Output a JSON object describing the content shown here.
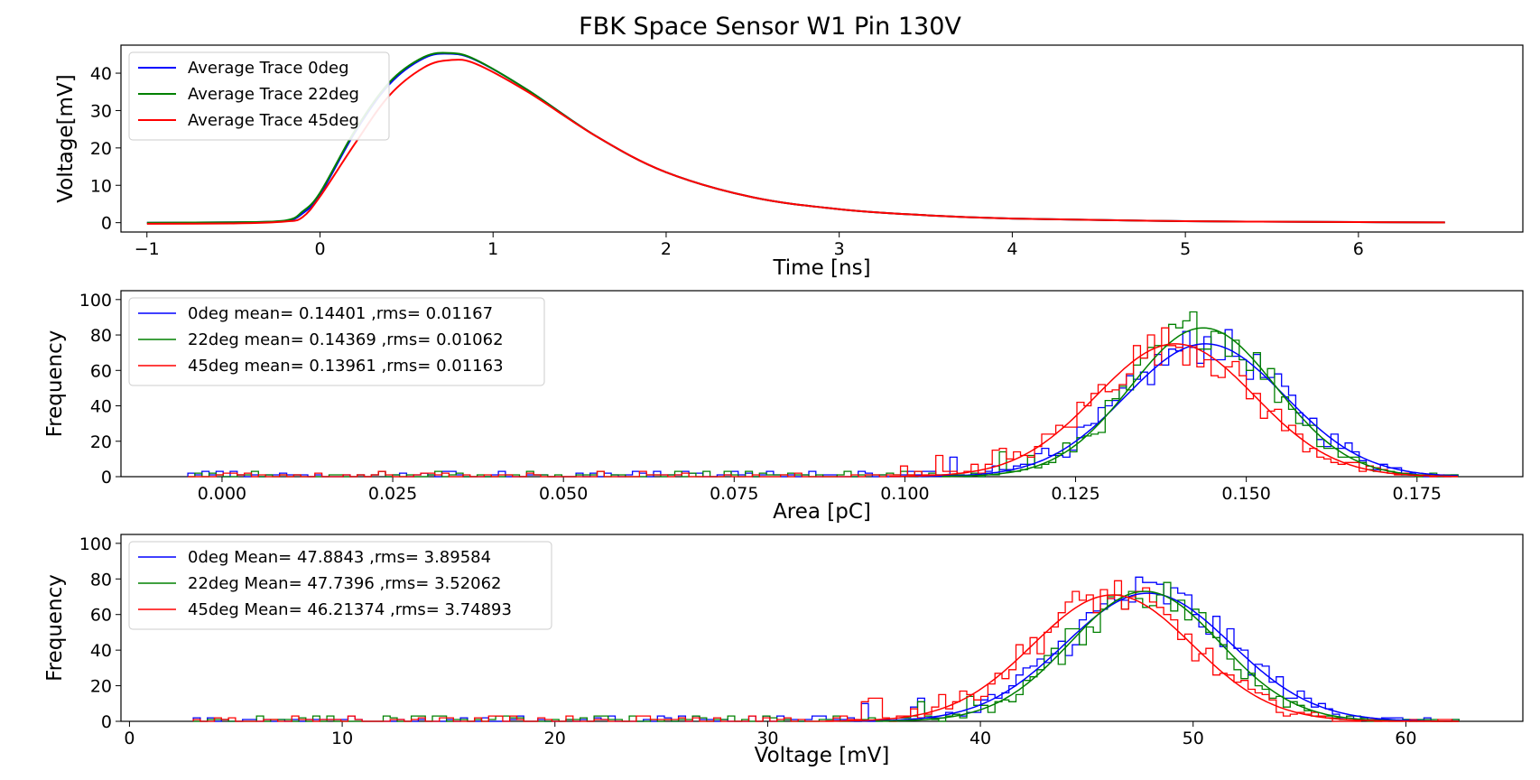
{
  "title": "FBK Space Sensor W1 Pin 130V",
  "colors": {
    "deg0": "#0000ff",
    "deg22": "#008000",
    "deg45": "#ff0000"
  },
  "chart_data": [
    {
      "type": "line",
      "xlabel": "Time [ns]",
      "ylabel": "Voltage[mV]",
      "xlim": [
        -1.15,
        6.95
      ],
      "ylim": [
        -2.5,
        47.5
      ],
      "xticks": [
        -1,
        0,
        1,
        2,
        3,
        4,
        5,
        6
      ],
      "xtick_labels": [
        "−1",
        "0",
        "1",
        "2",
        "3",
        "4",
        "5",
        "6"
      ],
      "yticks": [
        0,
        10,
        20,
        30,
        40
      ],
      "legend_position": "top-left",
      "series": [
        {
          "name": "Average Trace 0deg",
          "color": "#0000ff",
          "x": [
            -1,
            -0.5,
            -0.2,
            -0.1,
            0,
            0.2,
            0.4,
            0.6,
            0.75,
            0.9,
            1.2,
            1.6,
            2,
            2.5,
            3,
            3.5,
            4,
            5,
            6,
            6.5
          ],
          "y": [
            0,
            0.1,
            0.5,
            2.5,
            7.5,
            24,
            37,
            44,
            45.2,
            43.5,
            35.5,
            23,
            13.5,
            6.8,
            3.6,
            2,
            1.1,
            0.4,
            0.15,
            0.05
          ]
        },
        {
          "name": "Average Trace 22deg",
          "color": "#008000",
          "x": [
            -1,
            -0.5,
            -0.2,
            -0.1,
            0,
            0.2,
            0.4,
            0.6,
            0.75,
            0.9,
            1.2,
            1.6,
            2,
            2.5,
            3,
            3.5,
            4,
            5,
            6,
            6.5
          ],
          "y": [
            0,
            0.1,
            0.6,
            3,
            8,
            24.5,
            37.5,
            44.3,
            45.4,
            43.6,
            35.5,
            23,
            13.5,
            6.8,
            3.6,
            2,
            1.1,
            0.4,
            0.15,
            0.05
          ]
        },
        {
          "name": "Average Trace 45deg",
          "color": "#ff0000",
          "x": [
            -1,
            -0.5,
            -0.2,
            -0.1,
            0,
            0.2,
            0.4,
            0.6,
            0.75,
            0.9,
            1.2,
            1.6,
            2,
            2.5,
            3,
            3.5,
            4,
            5,
            6,
            6.5
          ],
          "y": [
            -0.3,
            -0.2,
            0.3,
            1.5,
            7,
            21,
            34,
            41.5,
            43.5,
            42.5,
            35,
            23,
            13.5,
            6.8,
            3.6,
            2,
            1.1,
            0.4,
            0.15,
            0.05
          ]
        }
      ]
    },
    {
      "type": "histogram",
      "xlabel": "Area [pC]",
      "ylabel": "Frequency",
      "xlim": [
        -0.0148,
        0.1905
      ],
      "ylim": [
        0,
        105
      ],
      "xticks": [
        0,
        0.025,
        0.05,
        0.075,
        0.1,
        0.125,
        0.15,
        0.175
      ],
      "xtick_labels": [
        "0.000",
        "0.025",
        "0.050",
        "0.075",
        "0.100",
        "0.125",
        "0.150",
        "0.175"
      ],
      "yticks": [
        0,
        20,
        40,
        60,
        80,
        100
      ],
      "legend_position": "top-left",
      "series": [
        {
          "name": "0deg mean= 0.14401 ,rms= 0.01167",
          "color": "#0000ff",
          "fit": {
            "mean": 0.14401,
            "rms": 0.01167,
            "amplitude": 75
          },
          "x_range": [
            -0.005,
            0.181
          ]
        },
        {
          "name": "22deg mean= 0.14369 ,rms= 0.01062",
          "color": "#008000",
          "fit": {
            "mean": 0.14369,
            "rms": 0.01062,
            "amplitude": 84
          },
          "x_range": [
            -0.005,
            0.181
          ]
        },
        {
          "name": "45deg mean= 0.13961 ,rms= 0.01163",
          "color": "#ff0000",
          "fit": {
            "mean": 0.13961,
            "rms": 0.01163,
            "amplitude": 75
          },
          "x_range": [
            -0.005,
            0.181
          ]
        }
      ]
    },
    {
      "type": "histogram",
      "xlabel": "Voltage [mV]",
      "ylabel": "Frequency",
      "xlim": [
        -0.4,
        65.5
      ],
      "ylim": [
        0,
        105
      ],
      "xticks": [
        0,
        10,
        20,
        30,
        40,
        50,
        60
      ],
      "xtick_labels": [
        "0",
        "10",
        "20",
        "30",
        "40",
        "50",
        "60"
      ],
      "yticks": [
        0,
        20,
        40,
        60,
        80,
        100
      ],
      "legend_position": "top-left",
      "series": [
        {
          "name": "0deg Mean= 47.8843 ,rms= 3.89584",
          "color": "#0000ff",
          "fit": {
            "mean": 47.8843,
            "rms": 3.89584,
            "amplitude": 72
          },
          "x_range": [
            3,
            62.5
          ]
        },
        {
          "name": "22deg Mean= 47.7396 ,rms= 3.52062",
          "color": "#008000",
          "fit": {
            "mean": 47.7396,
            "rms": 3.52062,
            "amplitude": 73
          },
          "x_range": [
            3,
            62.5
          ]
        },
        {
          "name": "45deg Mean= 46.21374 ,rms= 3.74893",
          "color": "#ff0000",
          "fit": {
            "mean": 46.21374,
            "rms": 3.74893,
            "amplitude": 71
          },
          "x_range": [
            3,
            62.5
          ]
        }
      ]
    }
  ]
}
